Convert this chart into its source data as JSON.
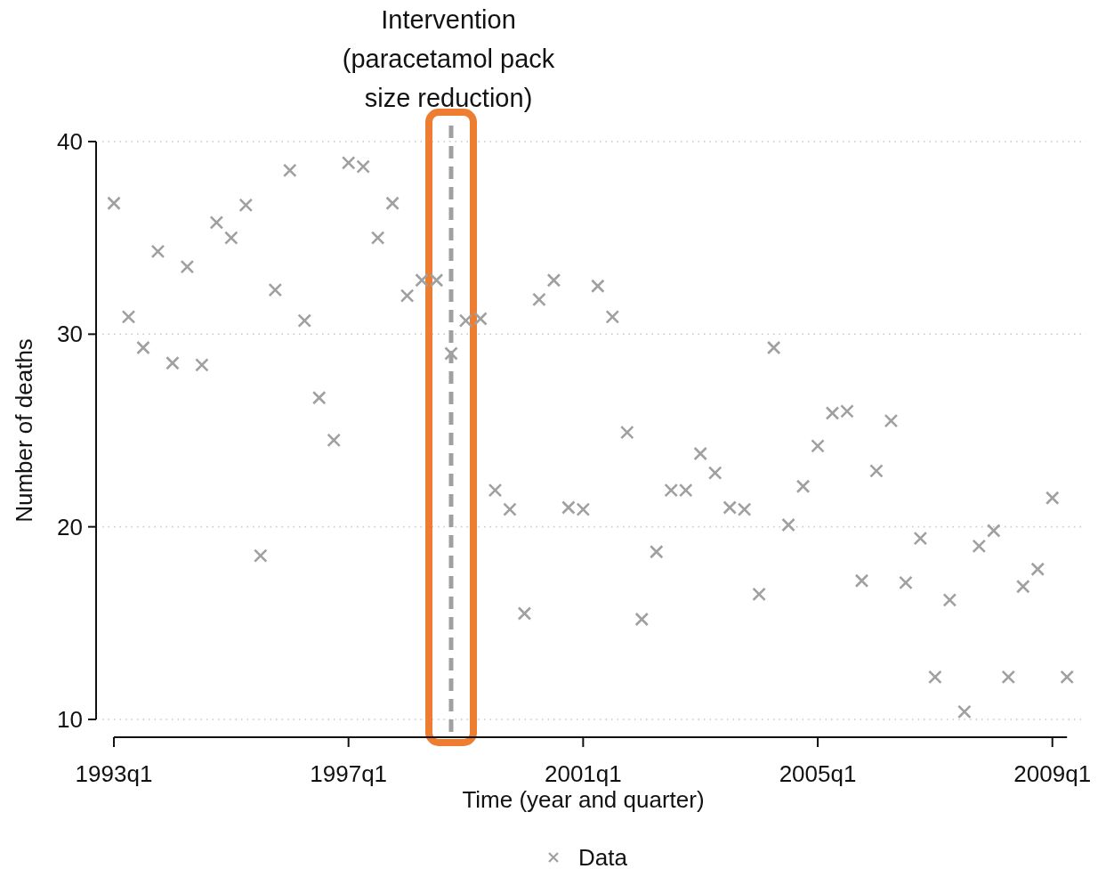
{
  "chart_data": {
    "type": "scatter",
    "xlabel": "Time (year and quarter)",
    "ylabel": "Number of deaths",
    "annotations": [
      "Intervention\n(paracetamol pack\nsize reduction)"
    ],
    "categories": [
      "1993q1",
      null,
      null,
      null,
      null,
      null,
      null,
      null,
      null,
      null,
      null,
      null,
      null,
      null,
      null,
      null,
      "1997q1",
      null,
      null,
      null,
      null,
      null,
      null,
      null,
      null,
      null,
      null,
      null,
      null,
      null,
      null,
      null,
      "2001q1",
      null,
      null,
      null,
      null,
      null,
      null,
      null,
      null,
      null,
      null,
      null,
      null,
      null,
      null,
      null,
      "2005q1",
      null,
      null,
      null,
      null,
      null,
      null,
      null,
      null,
      null,
      null,
      null,
      null,
      null,
      null,
      null,
      "2009q1",
      null
    ],
    "series": [
      {
        "name": "Data",
        "color": "#a0a0a0",
        "values": [
          36.8,
          30.9,
          29.3,
          34.3,
          28.5,
          33.5,
          28.4,
          35.8,
          35.0,
          36.7,
          18.5,
          32.3,
          38.5,
          30.7,
          26.7,
          24.5,
          38.9,
          38.7,
          35.0,
          36.8,
          32.0,
          32.8,
          32.8,
          29.0,
          30.7,
          30.8,
          21.9,
          20.9,
          15.5,
          31.8,
          32.8,
          21.0,
          20.9,
          32.5,
          30.9,
          24.9,
          15.2,
          18.7,
          21.9,
          21.9,
          23.8,
          22.8,
          21.0,
          20.9,
          16.5,
          29.3,
          20.1,
          22.1,
          24.2,
          25.9,
          26.0,
          17.2,
          22.9,
          25.5,
          17.1,
          19.4,
          12.2,
          16.2,
          10.4,
          19.0,
          19.8,
          12.2,
          16.9,
          17.8,
          21.5,
          12.2
        ]
      }
    ],
    "ylim": [
      10,
      40
    ],
    "yticks": [
      10,
      20,
      30,
      40
    ],
    "grid": "y",
    "legend": "bottom",
    "marker": "cross"
  }
}
